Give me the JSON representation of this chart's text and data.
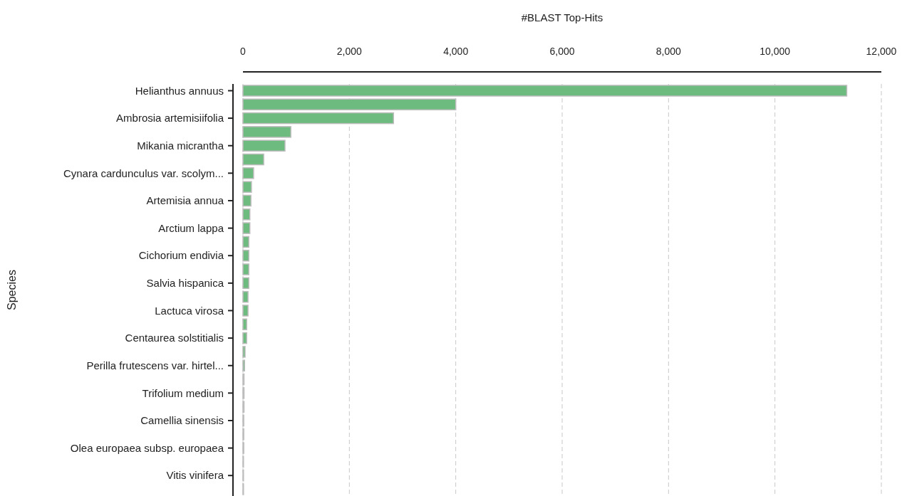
{
  "chart_data": {
    "type": "bar",
    "orientation": "horizontal",
    "xlabel": "#BLAST Top-Hits",
    "ylabel": "Species",
    "categories": [
      "Helianthus annuus",
      null,
      "Ambrosia artemisiifolia",
      null,
      "Mikania micrantha",
      null,
      "Cynara cardunculus var. scolym...",
      null,
      "Artemisia annua",
      null,
      "Arctium lappa",
      null,
      "Cichorium endivia",
      null,
      "Salvia hispanica",
      null,
      "Lactuca virosa",
      null,
      "Centaurea solstitialis",
      null,
      "Perilla frutescens var. hirtel...",
      null,
      "Trifolium medium",
      null,
      "Camellia sinensis",
      null,
      "Olea europaea subsp. europaea",
      null,
      "Vitis vinifera",
      null
    ],
    "values": [
      11350,
      4000,
      2830,
      900,
      790,
      390,
      200,
      160,
      150,
      130,
      130,
      110,
      110,
      110,
      110,
      95,
      95,
      70,
      70,
      40,
      30,
      20,
      20,
      20,
      15,
      15,
      15,
      10,
      10,
      10
    ],
    "color": "#6dbb7f",
    "xlim": [
      0,
      12000
    ],
    "xticks": [
      {
        "value": 0,
        "label": "0"
      },
      {
        "value": 2000,
        "label": "2,000"
      },
      {
        "value": 4000,
        "label": "4,000"
      },
      {
        "value": 6000,
        "label": "6,000"
      },
      {
        "value": 8000,
        "label": "8,000"
      },
      {
        "value": 10000,
        "label": "10,000"
      },
      {
        "value": 12000,
        "label": "12,000"
      }
    ],
    "grid": "x"
  }
}
